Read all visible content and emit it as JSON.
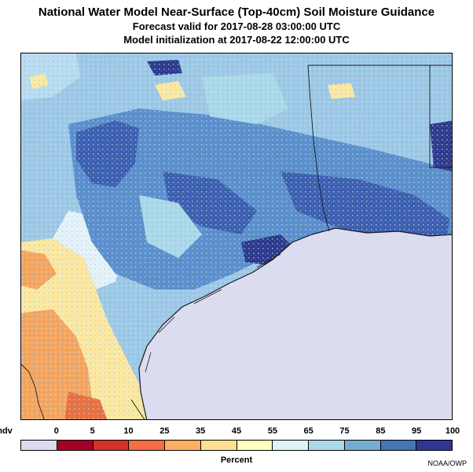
{
  "header": {
    "title": "National Water Model Near-Surface (Top-40cm) Soil Moisture Guidance",
    "forecast_line": "Forecast valid for 2017-08-28 03:00:00 UTC",
    "init_line": "Model initialization at 2017-08-22 12:00:00 UTC"
  },
  "legend": {
    "labels": [
      "ndv",
      "0",
      "5",
      "10",
      "25",
      "35",
      "45",
      "55",
      "65",
      "75",
      "85",
      "95",
      "100"
    ],
    "colors": [
      "#dcdcf0",
      "#a50026",
      "#d73027",
      "#f46d43",
      "#fdae61",
      "#fee090",
      "#ffffbf",
      "#e0f3f8",
      "#abd9e9",
      "#74add1",
      "#4575b4",
      "#313695"
    ],
    "title": "Percent"
  },
  "credit": "NOAA/OWP",
  "map_colors": {
    "gulf_water": "#dcdcf0",
    "land_base": "#9ec9e6",
    "moist": "#5b8fcc",
    "very_moist": "#3d5fb0",
    "saturated": "#2d3a8c",
    "dry": "#fde9a0",
    "very_dry": "#f6a55e"
  }
}
